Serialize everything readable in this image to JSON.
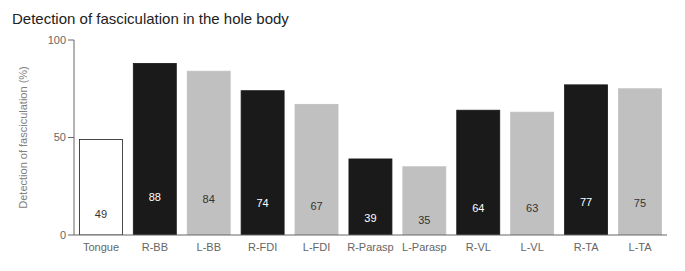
{
  "chart_data": {
    "type": "bar",
    "title": "Detection of fasciculation in the hole body",
    "ylabel": "Detection of fasciculation (%)",
    "categories": [
      "Tongue",
      "R-BB",
      "L-BB",
      "R-FDI",
      "L-FDI",
      "R-Parasp",
      "L-Parasp",
      "R-VL",
      "L-VL",
      "R-TA",
      "L-TA"
    ],
    "values": [
      49,
      88,
      84,
      74,
      67,
      39,
      35,
      64,
      63,
      77,
      75
    ],
    "colors": [
      "#ffffff",
      "#1a1a1a",
      "#c0c0c0",
      "#1a1a1a",
      "#c0c0c0",
      "#1a1a1a",
      "#c0c0c0",
      "#1a1a1a",
      "#c0c0c0",
      "#1a1a1a",
      "#c0c0c0"
    ],
    "ylim": [
      0,
      100
    ],
    "yticks": [
      0,
      50,
      100
    ],
    "data_labels": true,
    "grid": false
  }
}
